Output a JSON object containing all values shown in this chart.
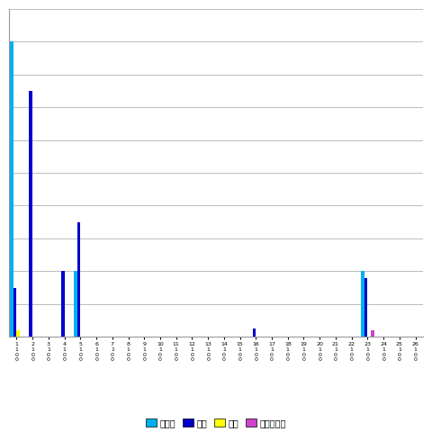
{
  "title": "",
  "n_categories": 26,
  "series": {
    "カナダ": [
      9000,
      0,
      0,
      0,
      2000,
      0,
      0,
      0,
      0,
      0,
      0,
      0,
      0,
      0,
      0,
      0,
      0,
      0,
      0,
      0,
      0,
      0,
      2000,
      0,
      0,
      0
    ],
    "米国": [
      1500,
      7500,
      0,
      2000,
      3500,
      0,
      0,
      0,
      0,
      0,
      0,
      0,
      0,
      0,
      0,
      250,
      0,
      0,
      0,
      0,
      0,
      0,
      1800,
      0,
      0,
      0
    ],
    "香港": [
      200,
      0,
      0,
      0,
      0,
      0,
      0,
      0,
      0,
      0,
      0,
      0,
      0,
      0,
      0,
      0,
      0,
      0,
      0,
      0,
      0,
      0,
      0,
      0,
      0,
      0
    ],
    "セーシェル": [
      0,
      0,
      0,
      0,
      0,
      0,
      0,
      0,
      0,
      0,
      0,
      0,
      0,
      0,
      0,
      0,
      0,
      0,
      0,
      0,
      0,
      0,
      200,
      0,
      0,
      0
    ]
  },
  "colors": {
    "カナダ": "#00B0F0",
    "米国": "#0000CC",
    "香港": "#FFFF00",
    "セーシェル": "#CC44CC"
  },
  "ylim": [
    0,
    10000
  ],
  "background_color": "#FFFFFF",
  "grid_color": "#BBBBBB",
  "legend_entries": [
    "カナダ",
    "米国",
    "香港",
    "セーシェル"
  ]
}
